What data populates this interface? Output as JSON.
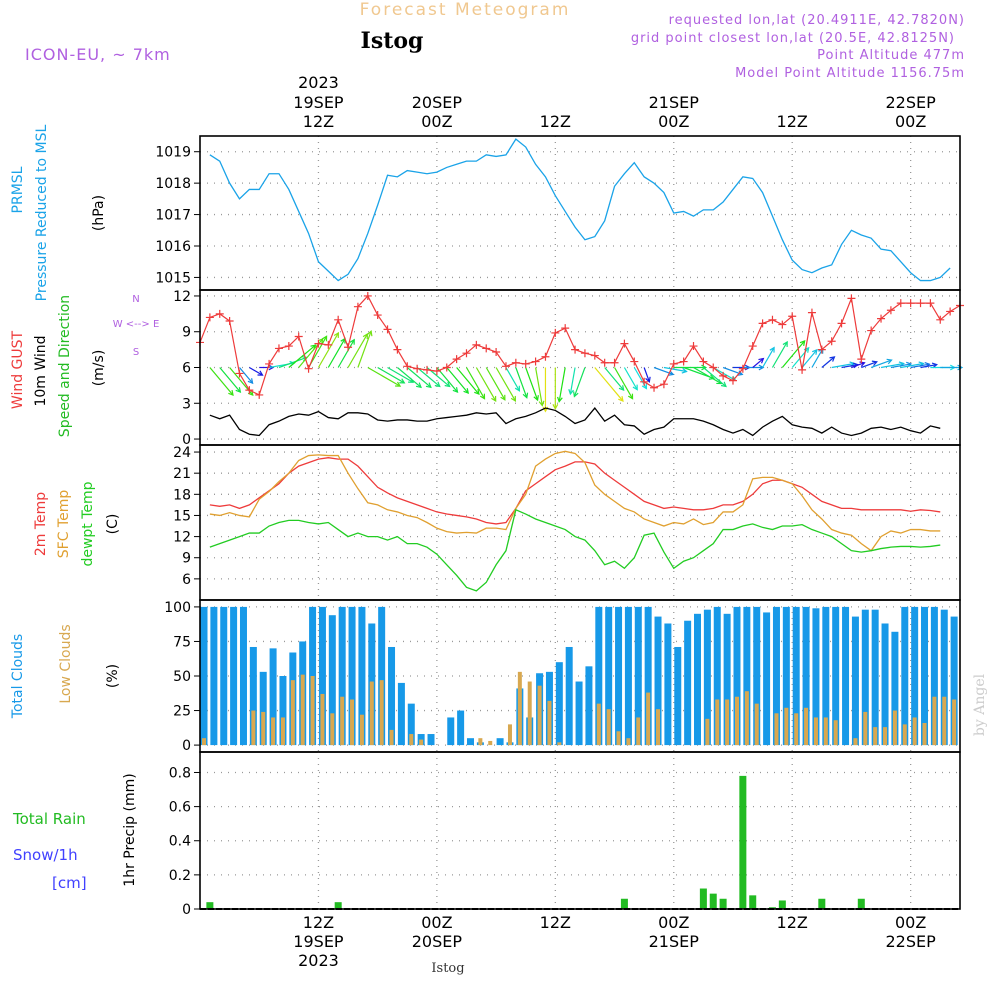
{
  "header": {
    "product": "Forecast Meteogram",
    "location": "Istog",
    "model": "ICON-EU, ~ 7km",
    "requested": "requested lon,lat (20.4911E, 42.7820N)",
    "gridpoint": "grid point closest lon,lat (20.5E, 42.8125N)",
    "point_alt": "Point Altitude 477m",
    "model_alt": "Model Point Altitude 1156.75m",
    "watermark": "by Angel",
    "footer_location": "Istog"
  },
  "time_axis": {
    "top": [
      {
        "l1": "2023",
        "l2": "19SEP",
        "l3": "12Z",
        "x": 12
      },
      {
        "l1": "",
        "l2": "20SEP",
        "l3": "00Z",
        "x": 24
      },
      {
        "l1": "",
        "l2": "",
        "l3": "12Z",
        "x": 36
      },
      {
        "l1": "",
        "l2": "21SEP",
        "l3": "00Z",
        "x": 48
      },
      {
        "l1": "",
        "l2": "",
        "l3": "12Z",
        "x": 60
      },
      {
        "l1": "",
        "l2": "22SEP",
        "l3": "00Z",
        "x": 72
      }
    ],
    "bottom": [
      {
        "l1": "12Z",
        "l2": "19SEP",
        "l3": "2023",
        "x": 12
      },
      {
        "l1": "00Z",
        "l2": "20SEP",
        "l3": "",
        "x": 24
      },
      {
        "l1": "12Z",
        "l2": "",
        "l3": "",
        "x": 36
      },
      {
        "l1": "00Z",
        "l2": "21SEP",
        "l3": "",
        "x": 48
      },
      {
        "l1": "12Z",
        "l2": "",
        "l3": "",
        "x": 60
      },
      {
        "l1": "00Z",
        "l2": "22SEP",
        "l3": "",
        "x": 72
      }
    ]
  },
  "labels": {
    "p1": {
      "a": "PRMSL",
      "b": "Pressure Reduced to MSL",
      "unit": "(hPa)"
    },
    "p2": {
      "a": "Wind GUST",
      "b": "10m Wind",
      "c": "Speed and Direction",
      "unit": "(m/s)",
      "compass": "W <--> E",
      "compass_n": "N",
      "compass_s": "S"
    },
    "p3": {
      "a": "2m Temp",
      "b": "SFC Temp",
      "c": "dewpt Temp",
      "unit": "(C)"
    },
    "p4": {
      "a": "Total Clouds",
      "b": "Low Clouds",
      "unit": "(%)"
    },
    "p5": {
      "a": "Total  Rain",
      "b": "Snow/1h",
      "c": "[cm]",
      "d": "1hr Precip (mm)"
    }
  },
  "colors": {
    "pressure": "#1aa3e8",
    "gust": "#ee3b3b",
    "wind": "#000000",
    "temp": "#ee3b3b",
    "sfc": "#e0a030",
    "dew": "#22cc22",
    "total_cloud": "#1799e8",
    "low_cloud": "#d8a850",
    "rain": "#22bb22",
    "snow": "#4040ff",
    "model": "#b060e0",
    "header": "#f0c890"
  },
  "chart_data": [
    {
      "type": "line",
      "title": "PRMSL Pressure Reduced to MSL",
      "ylabel": "(hPa)",
      "ylim": [
        1014.6,
        1019.5
      ],
      "yticks": [
        1015,
        1016,
        1017,
        1018,
        1019
      ],
      "xlim": [
        0,
        77
      ],
      "series": [
        {
          "name": "PRMSL",
          "values": [
            1018.9,
            1018.7,
            1018.0,
            1017.5,
            1017.8,
            1017.8,
            1018.3,
            1018.3,
            1017.8,
            1017.1,
            1016.4,
            1015.5,
            1015.2,
            1014.9,
            1015.1,
            1015.6,
            1016.4,
            1017.3,
            1018.25,
            1018.2,
            1018.4,
            1018.35,
            1018.3,
            1018.35,
            1018.5,
            1018.6,
            1018.7,
            1018.7,
            1018.9,
            1018.85,
            1018.9,
            1019.4,
            1019.15,
            1018.6,
            1018.2,
            1017.6,
            1017.1,
            1016.6,
            1016.2,
            1016.3,
            1016.8,
            1017.9,
            1018.3,
            1018.65,
            1018.2,
            1018.0,
            1017.7,
            1017.05,
            1017.1,
            1016.95,
            1017.15,
            1017.15,
            1017.4,
            1017.8,
            1018.2,
            1018.15,
            1017.7,
            1016.95,
            1016.2,
            1015.55,
            1015.25,
            1015.15,
            1015.3,
            1015.4,
            1016.05,
            1016.5,
            1016.35,
            1016.25,
            1015.9,
            1015.85,
            1015.5,
            1015.15,
            1014.9,
            1014.9,
            1015.0,
            1015.3
          ]
        }
      ]
    },
    {
      "type": "line",
      "title": "Wind GUST / 10m Wind",
      "ylabel": "(m/s)",
      "ylim": [
        -0.5,
        12.5
      ],
      "yticks": [
        0,
        3,
        6,
        9,
        12
      ],
      "xlim": [
        0,
        77
      ],
      "series": [
        {
          "name": "Wind GUST",
          "values": [
            8.1,
            10.2,
            10.5,
            9.9,
            5.5,
            4.1,
            3.7,
            6.3,
            7.6,
            7.8,
            8.6,
            5.9,
            8.0,
            7.9,
            10.0,
            7.7,
            11.1,
            12.0,
            10.4,
            9.2,
            7.5,
            6.1,
            5.9,
            5.8,
            5.7,
            6.0,
            6.7,
            7.2,
            7.9,
            7.6,
            7.3,
            6.1,
            6.4,
            6.3,
            6.5,
            6.9,
            8.9,
            9.3,
            7.5,
            7.2,
            7.0,
            6.4,
            6.4,
            8.0,
            6.5,
            4.8,
            4.3,
            4.6,
            6.3,
            6.5,
            7.8,
            6.5,
            6.0,
            5.3,
            4.9,
            5.9,
            7.8,
            9.7,
            10.0,
            9.6,
            10.3,
            5.8,
            10.6,
            7.5,
            8.2,
            9.7,
            11.8,
            6.7,
            9.1,
            10.1,
            10.8,
            11.4,
            11.4,
            11.4,
            11.4,
            10.0,
            10.7,
            11.2
          ]
        },
        {
          "name": "10m Wind",
          "values": [
            2.0,
            1.7,
            2.0,
            0.8,
            0.4,
            0.3,
            1.2,
            1.5,
            1.9,
            2.1,
            2.0,
            2.3,
            1.8,
            1.7,
            2.2,
            2.2,
            2.1,
            1.6,
            1.5,
            1.6,
            1.6,
            1.5,
            1.5,
            1.7,
            1.8,
            1.9,
            2.0,
            2.2,
            2.1,
            2.2,
            1.3,
            1.7,
            1.9,
            2.2,
            2.6,
            2.4,
            1.9,
            1.3,
            1.6,
            2.6,
            1.5,
            2.0,
            1.2,
            1.1,
            0.4,
            0.8,
            1.0,
            1.7,
            1.7,
            1.7,
            1.5,
            1.2,
            0.8,
            0.5,
            0.8,
            0.3,
            1.0,
            1.5,
            1.9,
            1.2,
            1.0,
            0.9,
            0.5,
            1.0,
            0.5,
            0.3,
            0.5,
            0.9,
            1.0,
            0.8,
            1.0,
            0.7,
            0.5,
            1.1,
            0.9
          ]
        }
      ],
      "wind_dir_deg": [
        320,
        320,
        320,
        320,
        300,
        270,
        260,
        250,
        230,
        220,
        210,
        210,
        210,
        210,
        210,
        200,
        300,
        300,
        300,
        310,
        310,
        310,
        310,
        320,
        320,
        320,
        330,
        330,
        330,
        330,
        330,
        340,
        340,
        350,
        0,
        0,
        10,
        10,
        20,
        320,
        320,
        330,
        330,
        330,
        340,
        290,
        280,
        270,
        290,
        300,
        310,
        300,
        290,
        270,
        270,
        230,
        210,
        210,
        220,
        220,
        220,
        210,
        230,
        260,
        260,
        250,
        250,
        250,
        260,
        260,
        260,
        260,
        260,
        270,
        270
      ]
    },
    {
      "type": "line",
      "title": "2m Temp / SFC Temp / dewpt Temp",
      "ylabel": "(C)",
      "ylim": [
        3,
        25
      ],
      "yticks": [
        6,
        9,
        12,
        15,
        18,
        21,
        24
      ],
      "xlim": [
        0,
        77
      ],
      "series": [
        {
          "name": "2m Temp",
          "values": [
            16.5,
            16.3,
            16.5,
            16.0,
            16.5,
            17.5,
            18.5,
            19.5,
            21.0,
            22.0,
            22.5,
            23.0,
            23.2,
            23.0,
            23.0,
            22.0,
            20.5,
            19.0,
            18.2,
            17.5,
            17.0,
            16.5,
            16.0,
            15.5,
            15.2,
            15.0,
            14.8,
            14.5,
            14.0,
            13.8,
            14.0,
            16.0,
            18.5,
            19.5,
            20.5,
            21.5,
            22.0,
            22.6,
            22.6,
            22.3,
            21.0,
            20.0,
            19.0,
            18.0,
            17.0,
            16.5,
            16.0,
            16.2,
            16.0,
            15.8,
            15.8,
            16.0,
            16.5,
            16.5,
            17.0,
            18.0,
            19.5,
            20.0,
            20.0,
            19.5,
            19.0,
            18.0,
            17.0,
            16.5,
            16.0,
            16.0,
            15.8,
            15.8,
            15.8,
            15.8,
            15.8,
            15.6,
            15.8,
            15.7,
            15.5
          ]
        },
        {
          "name": "SFC Temp",
          "values": [
            15.2,
            15.0,
            15.4,
            15.0,
            14.8,
            17.3,
            18.4,
            19.8,
            21.0,
            22.8,
            23.5,
            23.6,
            23.5,
            23.5,
            21.0,
            18.8,
            16.8,
            16.5,
            15.8,
            15.5,
            15.0,
            14.7,
            14.0,
            13.2,
            12.7,
            12.5,
            12.6,
            12.5,
            13.2,
            13.2,
            13.0,
            16.0,
            18.0,
            22.0,
            23.0,
            23.8,
            24.1,
            23.8,
            22.5,
            19.3,
            18.0,
            17.0,
            16.0,
            15.5,
            14.5,
            14.0,
            13.5,
            14.0,
            13.8,
            14.5,
            13.7,
            14.0,
            15.5,
            15.5,
            16.5,
            20.2,
            20.4,
            20.4,
            20.0,
            19.5,
            17.8,
            15.8,
            14.5,
            13.0,
            12.5,
            12.2,
            11.0,
            10.0,
            12.0,
            12.8,
            12.5,
            13.0,
            13.0,
            12.8,
            12.8
          ]
        },
        {
          "name": "dewpt Temp",
          "values": [
            10.5,
            11.0,
            11.5,
            12.0,
            12.5,
            12.5,
            13.5,
            14.0,
            14.3,
            14.3,
            14.0,
            13.8,
            14.0,
            13.0,
            12.0,
            12.5,
            12.0,
            12.0,
            11.5,
            12.0,
            11.0,
            11.0,
            10.5,
            9.5,
            8.0,
            6.5,
            4.8,
            4.3,
            5.5,
            8.0,
            10.0,
            15.8,
            15.2,
            14.5,
            14.0,
            13.5,
            13.0,
            12.0,
            11.5,
            10.0,
            8.0,
            8.5,
            7.5,
            9.0,
            12.2,
            12.5,
            9.8,
            7.5,
            8.5,
            9.0,
            10.0,
            11.0,
            13.0,
            13.0,
            13.5,
            13.8,
            13.3,
            13.0,
            13.5,
            13.5,
            13.7,
            13.0,
            12.5,
            12.0,
            11.0,
            10.0,
            9.8,
            10.0,
            10.3,
            10.5,
            10.6,
            10.6,
            10.5,
            10.6,
            10.8
          ]
        }
      ]
    },
    {
      "type": "bar",
      "title": "Total Clouds / Low Clouds",
      "ylabel": "(%)",
      "ylim": [
        -5,
        105
      ],
      "yticks": [
        0,
        25,
        50,
        75,
        100
      ],
      "xlim": [
        0,
        77
      ],
      "series": [
        {
          "name": "Total Clouds",
          "values": [
            100,
            100,
            100,
            100,
            100,
            71,
            53,
            70,
            50,
            67,
            75,
            100,
            100,
            94,
            100,
            100,
            100,
            88,
            100,
            71,
            45,
            30,
            8,
            8,
            0,
            20,
            25,
            5,
            2,
            0,
            5,
            2,
            41,
            20,
            52,
            53,
            60,
            71,
            46,
            57,
            100,
            100,
            100,
            100,
            100,
            100,
            93,
            88,
            71,
            90,
            95,
            98,
            100,
            95,
            100,
            100,
            100,
            96,
            100,
            100,
            100,
            100,
            99,
            100,
            100,
            100,
            93,
            98,
            98,
            88,
            82,
            100,
            100,
            100,
            100,
            98,
            93
          ]
        },
        {
          "name": "Low Clouds",
          "values": [
            5,
            0,
            0,
            0,
            0,
            25,
            24,
            20,
            20,
            47,
            51,
            50,
            37,
            23,
            35,
            33,
            22,
            46,
            47,
            11,
            0,
            8,
            4,
            0,
            0,
            0,
            0,
            0,
            5,
            3,
            0,
            15,
            53,
            46,
            43,
            32,
            2,
            0,
            0,
            0,
            30,
            26,
            10,
            5,
            20,
            38,
            26,
            0,
            0,
            0,
            0,
            19,
            33,
            33,
            35,
            39,
            30,
            0,
            23,
            27,
            23,
            27,
            20,
            20,
            18,
            0,
            5,
            24,
            13,
            13,
            25,
            15,
            20,
            16,
            35,
            35,
            33
          ]
        }
      ]
    },
    {
      "type": "bar",
      "title": "1hr Precip (mm)",
      "ylabel": "1hr Precip (mm)",
      "ylim": [
        0,
        0.92
      ],
      "yticks": [
        0,
        0.2,
        0.4,
        0.6,
        0.8
      ],
      "xlim": [
        0,
        77
      ],
      "series": [
        {
          "name": "Total Rain",
          "values": [
            0,
            0.04,
            0,
            0,
            0,
            0,
            0,
            0,
            0,
            0,
            0,
            0,
            0,
            0,
            0.04,
            0,
            0,
            0,
            0,
            0,
            0,
            0,
            0,
            0,
            0,
            0,
            0,
            0,
            0,
            0,
            0,
            0,
            0,
            0,
            0,
            0,
            0,
            0,
            0,
            0,
            0,
            0,
            0,
            0.06,
            0,
            0,
            0,
            0,
            0,
            0,
            0,
            0.12,
            0.09,
            0.06,
            0,
            0.78,
            0.08,
            0,
            0.01,
            0.05,
            0,
            0,
            0,
            0.06,
            0,
            0,
            0,
            0.06,
            0,
            0,
            0,
            0,
            0,
            0,
            0,
            0,
            0
          ]
        },
        {
          "name": "Snow/1h",
          "values": [
            0,
            0,
            0,
            0,
            0,
            0,
            0,
            0,
            0,
            0,
            0,
            0,
            0,
            0,
            0,
            0,
            0,
            0,
            0,
            0,
            0,
            0,
            0,
            0,
            0,
            0,
            0,
            0,
            0,
            0,
            0,
            0,
            0,
            0,
            0,
            0,
            0,
            0,
            0,
            0,
            0,
            0,
            0,
            0,
            0,
            0,
            0,
            0,
            0,
            0,
            0,
            0,
            0,
            0,
            0,
            0,
            0,
            0,
            0,
            0,
            0,
            0,
            0,
            0,
            0,
            0,
            0,
            0,
            0,
            0,
            0,
            0,
            0,
            0,
            0,
            0,
            0
          ]
        }
      ]
    }
  ]
}
